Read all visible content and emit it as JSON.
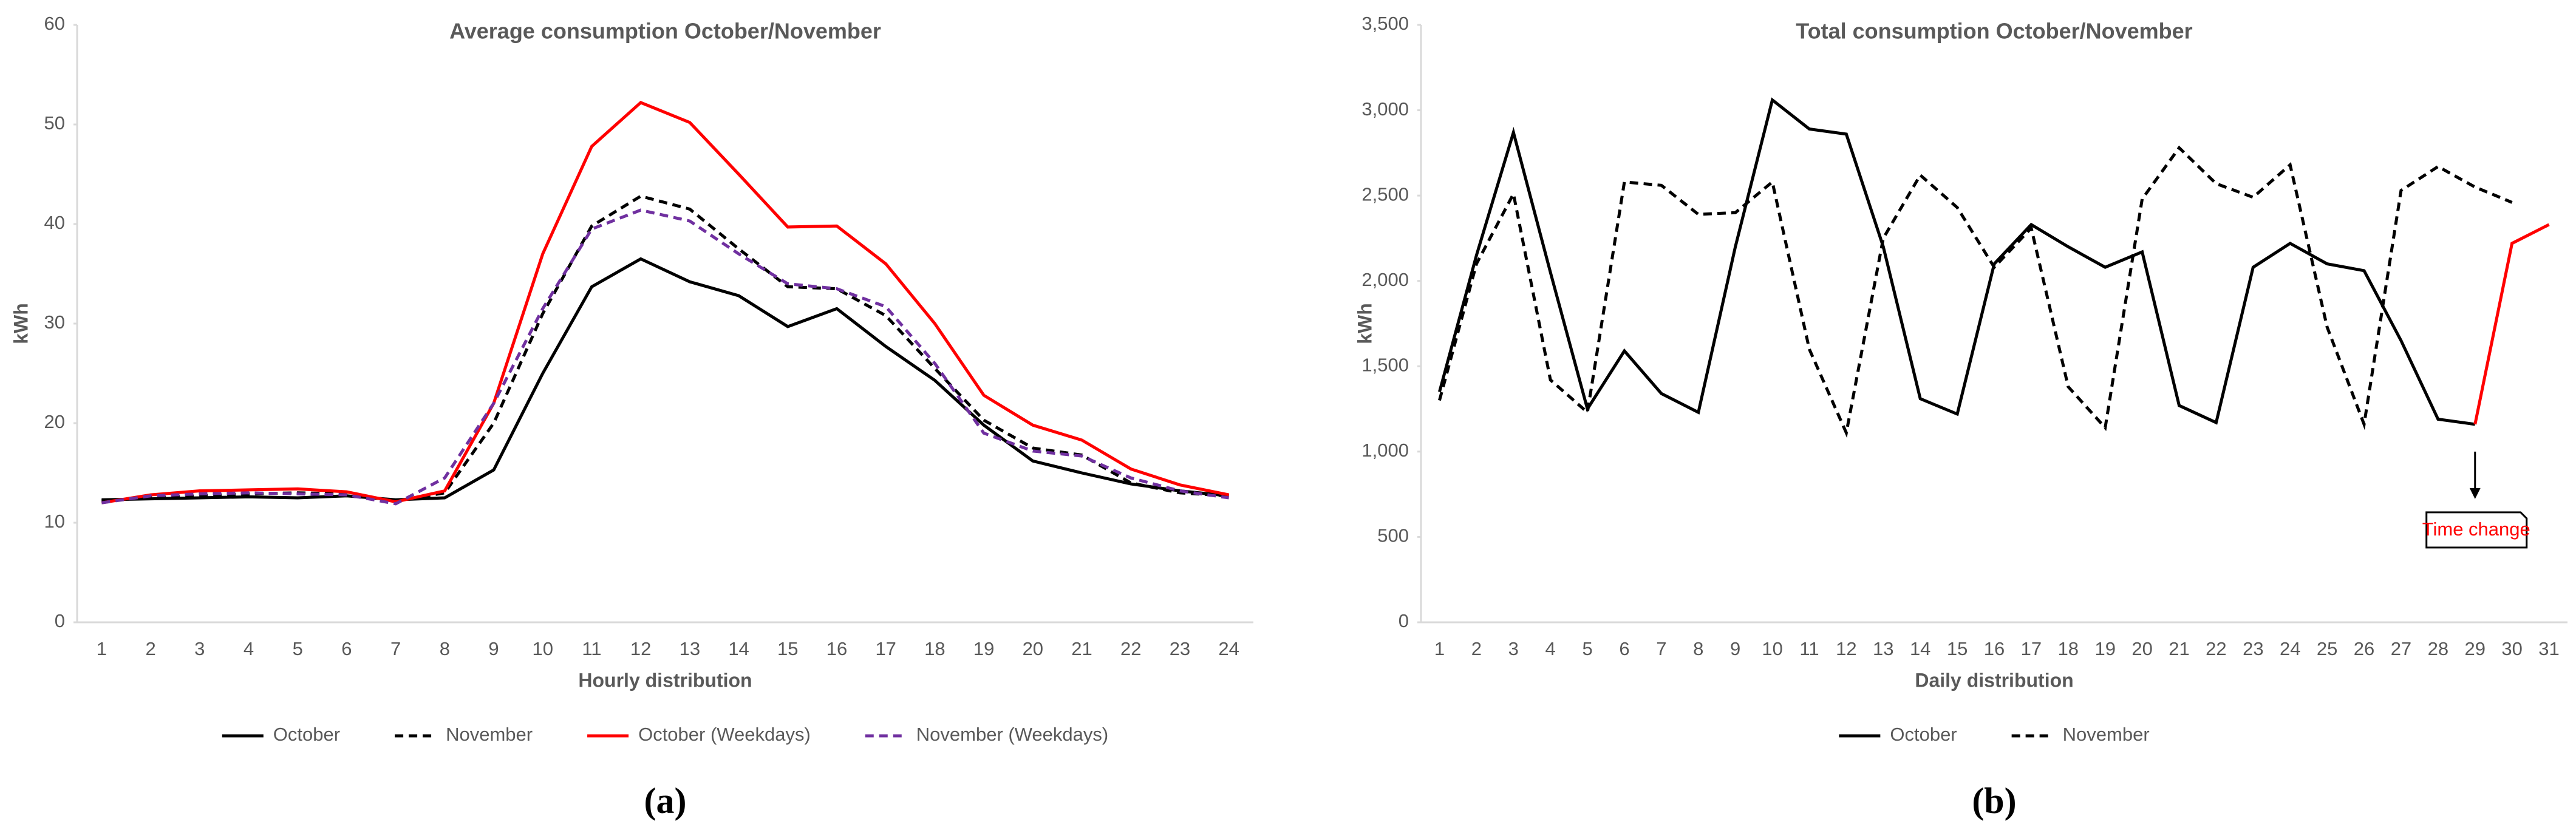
{
  "chart_data": [
    {
      "type": "line",
      "title": "Average consumption  October/November",
      "x_label": "Hourly distribution",
      "y_label": "kWh",
      "caption": "(a)",
      "categories": [
        "1",
        "2",
        "3",
        "4",
        "5",
        "6",
        "7",
        "8",
        "9",
        "10",
        "11",
        "12",
        "13",
        "14",
        "15",
        "16",
        "17",
        "18",
        "19",
        "20",
        "21",
        "22",
        "23",
        "24"
      ],
      "ylim": [
        0,
        60
      ],
      "yticks": [
        0,
        10,
        20,
        30,
        40,
        50,
        60
      ],
      "series": [
        {
          "name": "October",
          "color": "#000000",
          "dash": false,
          "values": [
            12.3,
            12.4,
            12.5,
            12.6,
            12.5,
            12.7,
            12.3,
            12.5,
            15.3,
            25,
            33.7,
            36.5,
            34.2,
            32.8,
            29.7,
            31.5,
            27.7,
            24.3,
            19.8,
            16.2,
            15,
            13.9,
            13.2,
            12.7
          ]
        },
        {
          "name": "November",
          "color": "#000000",
          "dash": true,
          "values": [
            12.2,
            12.5,
            12.7,
            12.9,
            13,
            12.9,
            12.2,
            13,
            20,
            31,
            39.8,
            42.8,
            41.5,
            37.5,
            33.7,
            33.5,
            30.8,
            25.5,
            20.3,
            17.5,
            16.8,
            14,
            13,
            12.7
          ]
        },
        {
          "name": "October (Weekdays)",
          "color": "#ff0000",
          "dash": false,
          "values": [
            12,
            12.8,
            13.2,
            13.3,
            13.4,
            13.1,
            12.1,
            13.2,
            22,
            37,
            47.8,
            52.2,
            50.2,
            45,
            39.7,
            39.8,
            36,
            30,
            22.8,
            19.8,
            18.3,
            15.4,
            13.8,
            12.8
          ]
        },
        {
          "name": "November (Weekdays)",
          "color": "#7030a0",
          "dash": true,
          "values": [
            12,
            12.7,
            12.9,
            13,
            12.9,
            12.8,
            11.9,
            14.5,
            22,
            31.5,
            39.5,
            41.4,
            40.3,
            37,
            34,
            33.5,
            31.7,
            26,
            19,
            17.2,
            16.7,
            14.5,
            13.2,
            12.5
          ]
        }
      ]
    },
    {
      "type": "line",
      "title": "Total consumption October/November",
      "x_label": "Daily distribution",
      "y_label": "kWh",
      "caption": "(b)",
      "categories": [
        "1",
        "2",
        "3",
        "4",
        "5",
        "6",
        "7",
        "8",
        "9",
        "10",
        "11",
        "12",
        "13",
        "14",
        "15",
        "16",
        "17",
        "18",
        "19",
        "20",
        "21",
        "22",
        "23",
        "24",
        "25",
        "26",
        "27",
        "28",
        "29",
        "30",
        "31"
      ],
      "ylim": [
        0,
        3500
      ],
      "yticks": [
        0,
        {
          "value": 500,
          "label": "500"
        },
        {
          "value": 1000,
          "label": "1,000"
        },
        {
          "value": 1500,
          "label": "1,500"
        },
        {
          "value": 2000,
          "label": "2,000"
        },
        {
          "value": 2500,
          "label": "2,500"
        },
        {
          "value": 3000,
          "label": "3,000"
        },
        {
          "value": 3500,
          "label": "3,500"
        }
      ],
      "annotation": "Time change",
      "series": [
        {
          "name": "October",
          "color": "#000000",
          "dash": false,
          "highlight": {
            "from": "29",
            "color": "#ff0000"
          },
          "values": [
            1350,
            2150,
            2870,
            2050,
            1250,
            1590,
            1340,
            1230,
            2200,
            3060,
            2890,
            2860,
            2200,
            1310,
            1220,
            2100,
            2330,
            2200,
            2080,
            2170,
            1270,
            1170,
            2080,
            2220,
            2100,
            2060,
            1650,
            1190,
            1160,
            2220,
            2330
          ]
        },
        {
          "name": "November",
          "color": "#000000",
          "dash": true,
          "values": [
            1300,
            2100,
            2510,
            1420,
            1230,
            2580,
            2560,
            2390,
            2400,
            2580,
            1600,
            1110,
            2250,
            2620,
            2430,
            2080,
            2310,
            1380,
            1140,
            2480,
            2780,
            2570,
            2490,
            2680,
            1730,
            1160,
            2530,
            2670,
            2550,
            2460,
            null
          ]
        }
      ]
    }
  ]
}
